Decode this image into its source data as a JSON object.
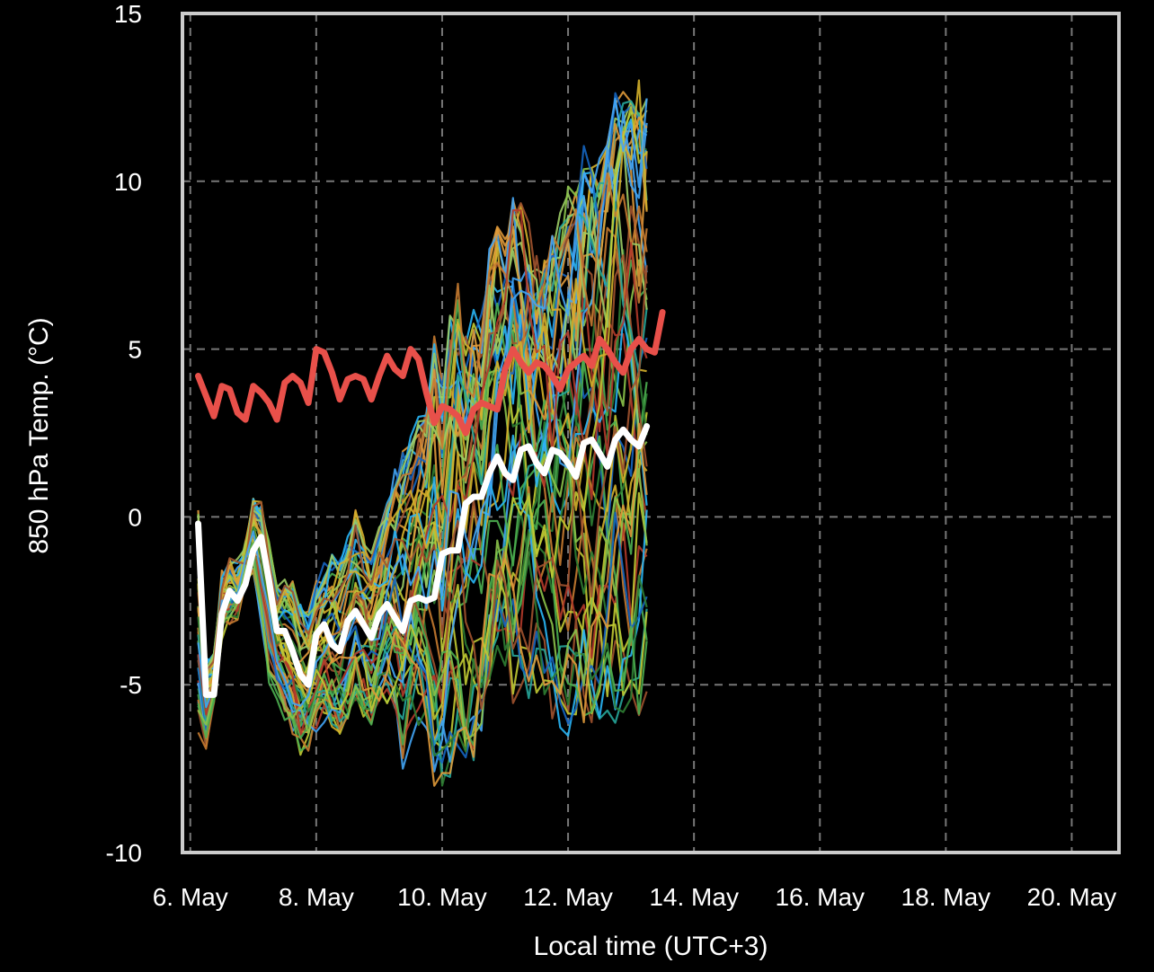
{
  "chart_data": {
    "type": "line",
    "title": "",
    "xlabel": "Local time (UTC+3)",
    "ylabel": "850 hPa Temp. (°C)",
    "ylim": [
      -10,
      15
    ],
    "yticks": [
      15,
      10,
      5,
      0,
      -5,
      -10
    ],
    "ytick_labels": [
      "15",
      "10",
      "5",
      "0",
      "-5",
      "-10"
    ],
    "xlim": [
      "2024-05-05T21:00",
      "2024-05-20T18:00"
    ],
    "xticks": [
      "2024-05-06T00:00",
      "2024-05-08T00:00",
      "2024-05-10T00:00",
      "2024-05-12T00:00",
      "2024-05-14T00:00",
      "2024-05-16T00:00",
      "2024-05-18T00:00",
      "2024-05-20T00:00"
    ],
    "xtick_labels": [
      "6. May",
      "8. May",
      "10. May",
      "12. May",
      "14. May",
      "16. May",
      "18. May",
      "20. May"
    ],
    "grid": true,
    "legend": "none",
    "colors": {
      "background": "#000000",
      "frame": "#cccccc",
      "grid": "#777777",
      "text": "#ffffff"
    },
    "x_step_hours": 6,
    "series": [
      {
        "color": "#e8504a",
        "width": 7,
        "values": [
          4.2,
          3.6,
          3.0,
          3.9,
          3.8,
          3.1,
          2.9,
          3.9,
          3.7,
          3.4,
          2.9,
          4.0,
          4.2,
          4.0,
          3.4,
          5.0,
          4.9,
          4.3,
          3.5,
          4.1,
          4.2,
          4.1,
          3.5,
          4.2,
          4.8,
          4.4,
          4.2,
          5.0,
          4.7,
          3.7,
          2.8,
          3.3,
          3.2,
          3.0,
          2.5,
          3.2,
          3.4,
          3.3,
          3.2,
          4.4,
          5.0,
          4.6,
          4.3,
          4.6,
          4.5,
          4.2,
          3.8,
          4.4,
          4.6,
          4.8,
          4.5,
          5.3,
          5.0,
          4.6,
          4.3,
          5.0,
          5.3,
          5.0,
          4.9,
          6.1
        ]
      },
      {
        "color": "#ffffff",
        "width": 7,
        "values": [
          -0.2,
          -5.3,
          -5.3,
          -2.9,
          -2.2,
          -2.5,
          -2.0,
          -1.0,
          -0.6,
          -1.9,
          -3.4,
          -3.4,
          -4.0,
          -4.7,
          -5.0,
          -3.5,
          -3.2,
          -3.8,
          -4.0,
          -3.1,
          -2.8,
          -3.2,
          -3.6,
          -2.9,
          -2.6,
          -3.0,
          -3.4,
          -2.5,
          -2.4,
          -2.5,
          -2.4,
          -1.1,
          -1.0,
          -1.0,
          0.4,
          0.6,
          0.6,
          1.3,
          1.8,
          1.3,
          1.1,
          2.0,
          2.1,
          1.6,
          1.3,
          2.0,
          1.9,
          1.6,
          1.2,
          2.2,
          2.3,
          1.9,
          1.5,
          2.3,
          2.6,
          2.3,
          2.1,
          2.7
        ]
      }
    ],
    "ensemble": {
      "description": "",
      "palette": [
        "#2e7d32",
        "#4caf50",
        "#8bc34a",
        "#c0ca33",
        "#d4b02a",
        "#e09a3a",
        "#a0522d",
        "#42a5f5",
        "#29b6f6",
        "#1565c0",
        "#26a69a",
        "#9ccc65",
        "#c77b30",
        "#b23a2a"
      ],
      "members": 50,
      "spread_lower": [
        -6.8,
        -6.9,
        -5.5,
        -3.5,
        -3.2,
        -2.9,
        -1.8,
        -1.6,
        -3.2,
        -5.0,
        -5.6,
        -6.2,
        -6.6,
        -7.3,
        -7.1,
        -6.6,
        -6.4,
        -6.7,
        -6.9,
        -6.4,
        -5.8,
        -6.2,
        -6.6,
        -6.0,
        -6.1,
        -6.9,
        -8.3,
        -7.5,
        -7.1,
        -7.3,
        -7.9,
        -8.2,
        -7.4,
        -6.8,
        -7.2,
        -6.9,
        -6.0,
        -5.2,
        -4.4,
        -4.4,
        -5.2,
        -4.8,
        -5.1,
        -5.4,
        -5.7,
        -6.0,
        -6.4,
        -6.2,
        -6.3,
        -6.0,
        -6.3,
        -5.9,
        -6.1,
        -6.2,
        -6.1,
        -6.0,
        -5.9,
        -5.7
      ],
      "spread_upper": [
        0.7,
        -4.3,
        -4.2,
        -1.8,
        -1.4,
        -1.5,
        -0.9,
        0.5,
        0.8,
        -0.5,
        -1.9,
        -1.6,
        -1.8,
        -2.3,
        -2.6,
        -1.6,
        -1.2,
        -0.9,
        -0.7,
        0.0,
        0.5,
        -0.1,
        -0.4,
        0.2,
        1.2,
        2.0,
        2.7,
        3.1,
        3.8,
        4.0,
        5.3,
        4.0,
        5.7,
        6.8,
        5.2,
        6.1,
        5.9,
        7.8,
        8.6,
        7.9,
        9.3,
        9.0,
        8.4,
        7.5,
        7.8,
        8.2,
        8.9,
        9.7,
        10.2,
        10.8,
        10.5,
        10.4,
        11.1,
        12.5,
        12.6,
        12.5,
        12.8,
        12.6
      ]
    }
  }
}
